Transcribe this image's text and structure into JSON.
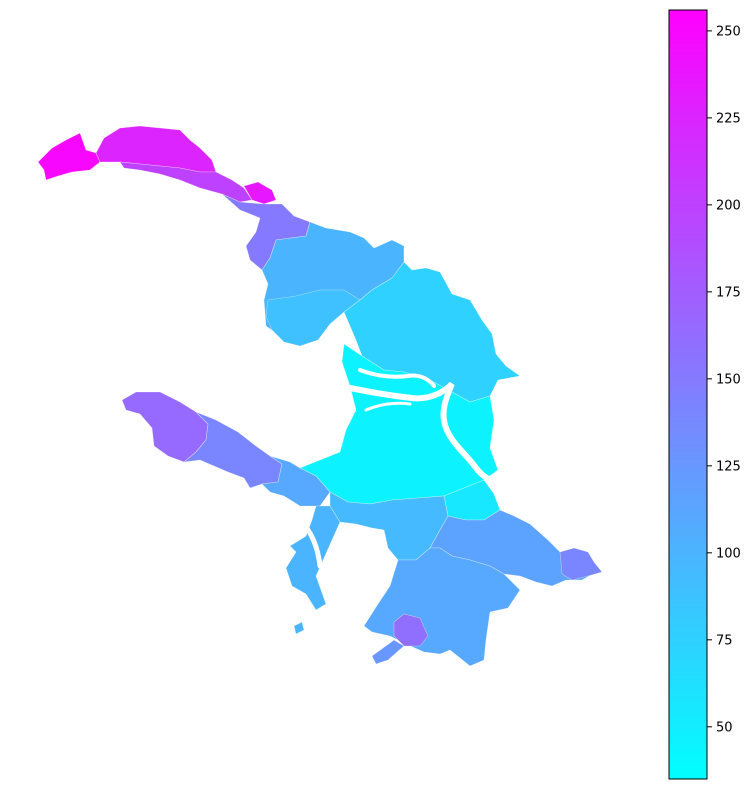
{
  "map": {
    "region_name": "",
    "colormap": "cool",
    "color_low": "#00ffff",
    "color_high": "#ff00ff",
    "districts": [
      {
        "name": "northwest-coast-tip",
        "value": 250
      },
      {
        "name": "northwest-coast",
        "value": 225
      },
      {
        "name": "northwest-inner-strip",
        "value": 200
      },
      {
        "name": "northwest-small-district",
        "value": 235
      },
      {
        "name": "north-lower-band",
        "value": 150
      },
      {
        "name": "north-isolated-patch",
        "value": 230
      },
      {
        "name": "north-central",
        "value": 100
      },
      {
        "name": "north-lake-area",
        "value": 90
      },
      {
        "name": "northeast",
        "value": 75
      },
      {
        "name": "city-center",
        "value": 45
      },
      {
        "name": "center-east",
        "value": 55
      },
      {
        "name": "southwest-peninsula-tip",
        "value": 165
      },
      {
        "name": "southwest-peninsula-mid",
        "value": 140
      },
      {
        "name": "southwest-peninsula-base",
        "value": 110
      },
      {
        "name": "southwest-coast-inlet",
        "value": 100
      },
      {
        "name": "south-central",
        "value": 95
      },
      {
        "name": "south-east",
        "value": 115
      },
      {
        "name": "far-east-tip",
        "value": 140
      },
      {
        "name": "south-lobe",
        "value": 110
      },
      {
        "name": "south-purple-patch",
        "value": 160
      },
      {
        "name": "south-tail",
        "value": 125
      },
      {
        "name": "small-southwest-islet",
        "value": 100
      }
    ]
  },
  "colorbar": {
    "min": 35,
    "max": 256,
    "ticks": [
      50,
      75,
      100,
      125,
      150,
      175,
      200,
      225,
      250
    ],
    "tick_labels": [
      "50",
      "75",
      "100",
      "125",
      "150",
      "175",
      "200",
      "225",
      "250"
    ]
  }
}
